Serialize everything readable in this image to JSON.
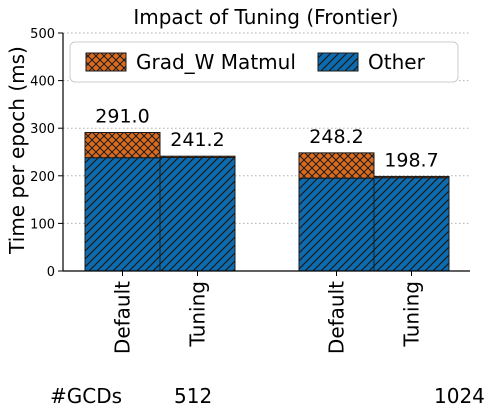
{
  "chart_data": {
    "type": "bar",
    "stacked": true,
    "title": "Impact of Tuning (Frontier)",
    "ylabel": "Time per epoch (ms)",
    "xlabel": "",
    "ylim": [
      0,
      500
    ],
    "yticks": [
      "0",
      "100",
      "200",
      "300",
      "400",
      "500"
    ],
    "grid": "y-dotted",
    "legend_position": "top",
    "categories": [
      "Default",
      "Tuning",
      "Default",
      "Tuning"
    ],
    "groups": [
      {
        "label": "512",
        "categories": [
          "Default",
          "Tuning"
        ]
      },
      {
        "label": "1024",
        "categories": [
          "Default",
          "Tuning"
        ]
      }
    ],
    "group_axis_label": "#GCDs",
    "series": [
      {
        "name": "Other",
        "values": [
          238.0,
          238.5,
          195.0,
          196.0
        ],
        "color": "#0d6bb0",
        "hatch": "diagonal"
      },
      {
        "name": "Grad_W Matmul",
        "values": [
          53.0,
          2.7,
          53.2,
          2.7
        ],
        "color": "#d96a1e",
        "hatch": "crosshatch"
      }
    ],
    "totals": [
      "291.0",
      "241.2",
      "248.2",
      "198.7"
    ],
    "legend_order": [
      "Grad_W Matmul",
      "Other"
    ]
  }
}
